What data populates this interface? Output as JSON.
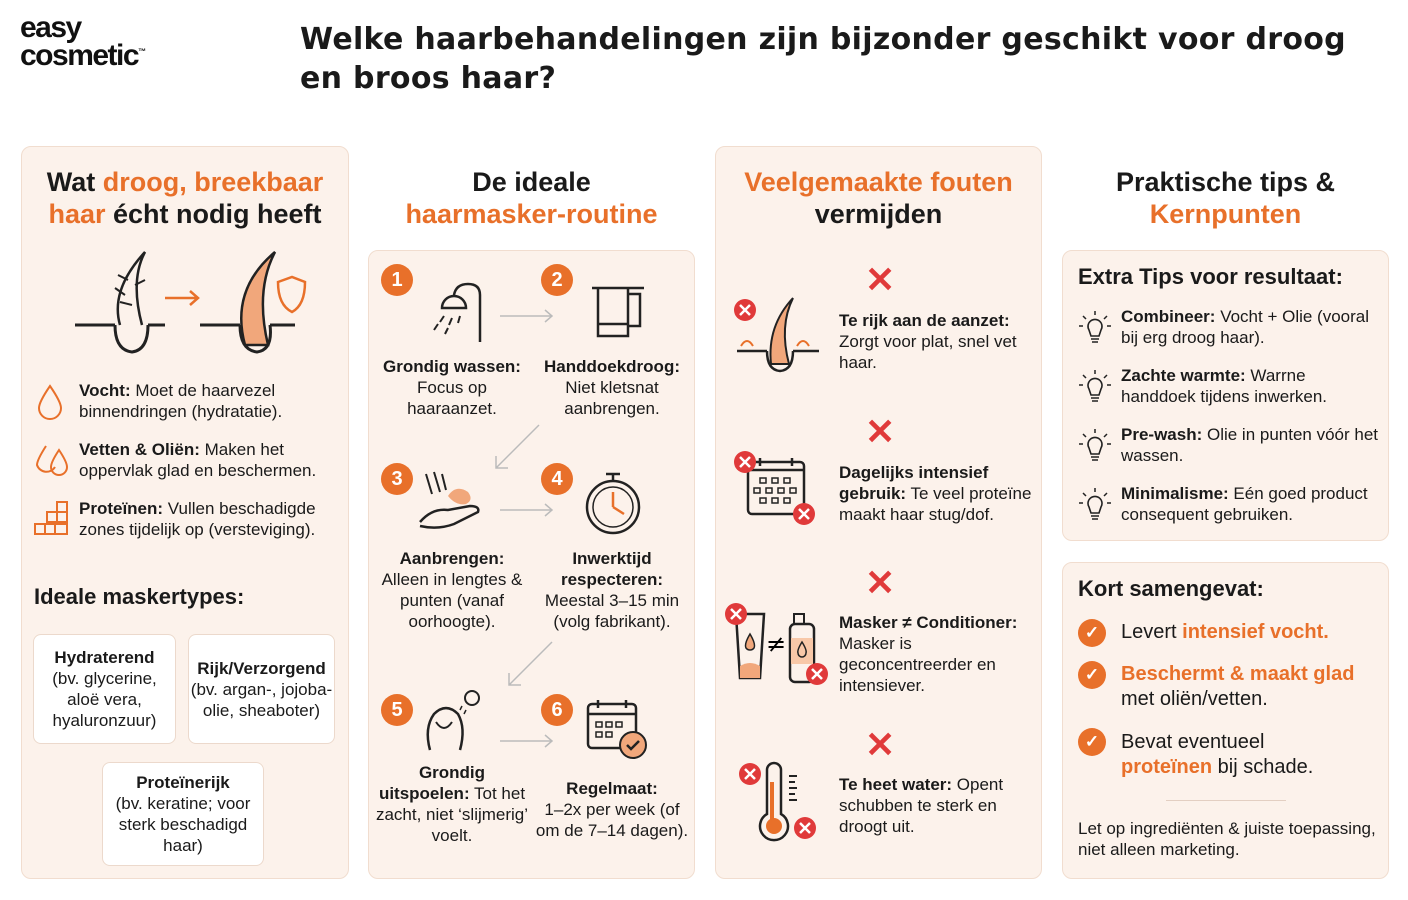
{
  "logo": {
    "line1": "easy",
    "line2": "cosmetic",
    "tm": "™"
  },
  "title": {
    "line1": "Welke haarbehandelingen zijn bijzonder geschikt voor droog",
    "line2": "en broos haar?"
  },
  "col1": {
    "heading": {
      "p1": "Wat ",
      "p2": "droog, breekbaar",
      "p3": "haar",
      "p4": " écht nodig heeft"
    },
    "items": [
      {
        "icon": "droplet-icon",
        "bold": "Vocht:",
        "text": " Moet de haarvezel binnendringen (hydratatie)."
      },
      {
        "icon": "double-droplet-icon",
        "bold": "Vetten & Oliën:",
        "text": " Maken het oppervlak glad en beschermen."
      },
      {
        "icon": "blocks-icon",
        "bold": "Proteïnen:",
        "text": " Vullen beschadigde zones tijdelijk op (versteviging)."
      }
    ],
    "mask_heading": "Ideale maskertypes:",
    "masks": [
      {
        "title": "Hydraterend",
        "desc": "(bv. glycerine, aloë vera, hyaluronzuur)"
      },
      {
        "title": "Rijk/Verzorgend",
        "desc": "(bv. argan-, jojoba-olie, sheaboter)"
      },
      {
        "title": "Proteïnerijk",
        "desc": "(bv. keratine; voor sterk beschadigd haar)"
      }
    ]
  },
  "col2": {
    "heading": {
      "p1": "De ideale",
      "p2": "haarmasker-routine"
    },
    "steps": [
      {
        "num": "1",
        "bold": "Grondig wassen:",
        "text": "Focus op haaraanzet.",
        "icon": "shower-icon"
      },
      {
        "num": "2",
        "bold": "Handdoekdroog:",
        "text": "Niet kletsnat aanbrengen.",
        "icon": "towel-icon"
      },
      {
        "num": "3",
        "bold": "Aanbrengen:",
        "text": "Alleen in lengtes & punten (vanaf oorhoogte).",
        "icon": "hand-cream-icon"
      },
      {
        "num": "4",
        "bold": "Inwerktijd respecteren:",
        "text": "Meestal 3–15 min (volg fabrikant).",
        "icon": "stopwatch-icon"
      },
      {
        "num": "5",
        "bold": "Grondig uitspoelen:",
        "text": " Tot het zacht, niet ‘slijmerig’ voelt.",
        "icon": "rinse-icon"
      },
      {
        "num": "6",
        "bold": "Regelmaat:",
        "text": "1–2x per week (of om de 7–14 dagen).",
        "icon": "calendar-check-icon"
      }
    ]
  },
  "col3": {
    "heading": {
      "p1": "Veelgemaakte fouten",
      "p2": "vermijden"
    },
    "items": [
      {
        "bold": "Te rijk aan de aanzet:",
        "text": " Zorgt voor plat, snel vet haar.",
        "icon": "greasy-hair-icon"
      },
      {
        "bold": "Dagelijks intensief gebruik:",
        "text": " Te veel proteïne maakt haar stug/dof.",
        "icon": "calendar-icon"
      },
      {
        "bold": "Masker ≠ Conditioner:",
        "text": " Masker is geconcentreerder en intensiever.",
        "icon": "tube-vs-bottle-icon"
      },
      {
        "bold": "Te heet water:",
        "text": " Opent schubben te sterk en droogt uit.",
        "icon": "thermometer-icon"
      }
    ]
  },
  "col4": {
    "heading": {
      "p1": "Praktische tips &",
      "p2": "Kernpunten"
    },
    "tips_heading": "Extra Tips voor resultaat:",
    "tips": [
      {
        "bold": "Combineer:",
        "text": " Vocht + Olie (vooral bij erg droog haar)."
      },
      {
        "bold": "Zachte warmte:",
        "text": " Warrne handdoek tijdens inwerken."
      },
      {
        "bold": "Pre-wash:",
        "text": " Olie in punten vóór het wassen."
      },
      {
        "bold": "Minimalisme:",
        "text": " Eén goed product consequent gebruiken."
      }
    ],
    "summary_heading": "Kort samengevat:",
    "summary": [
      {
        "a": "Levert ",
        "b": "intensief vocht.",
        "c": ""
      },
      {
        "a": "",
        "b": "Beschermt & maakt glad",
        "c": " met oliën/vetten."
      },
      {
        "a": "Bevat eventueel ",
        "b": "proteïnen",
        "c": " bij schade."
      }
    ],
    "footer": "Let op ingrediënten & juiste toepassing, niet alleen marketing."
  },
  "colors": {
    "accent": "#e8702a",
    "error": "#e03a3a",
    "card": "#fcf2eb"
  }
}
